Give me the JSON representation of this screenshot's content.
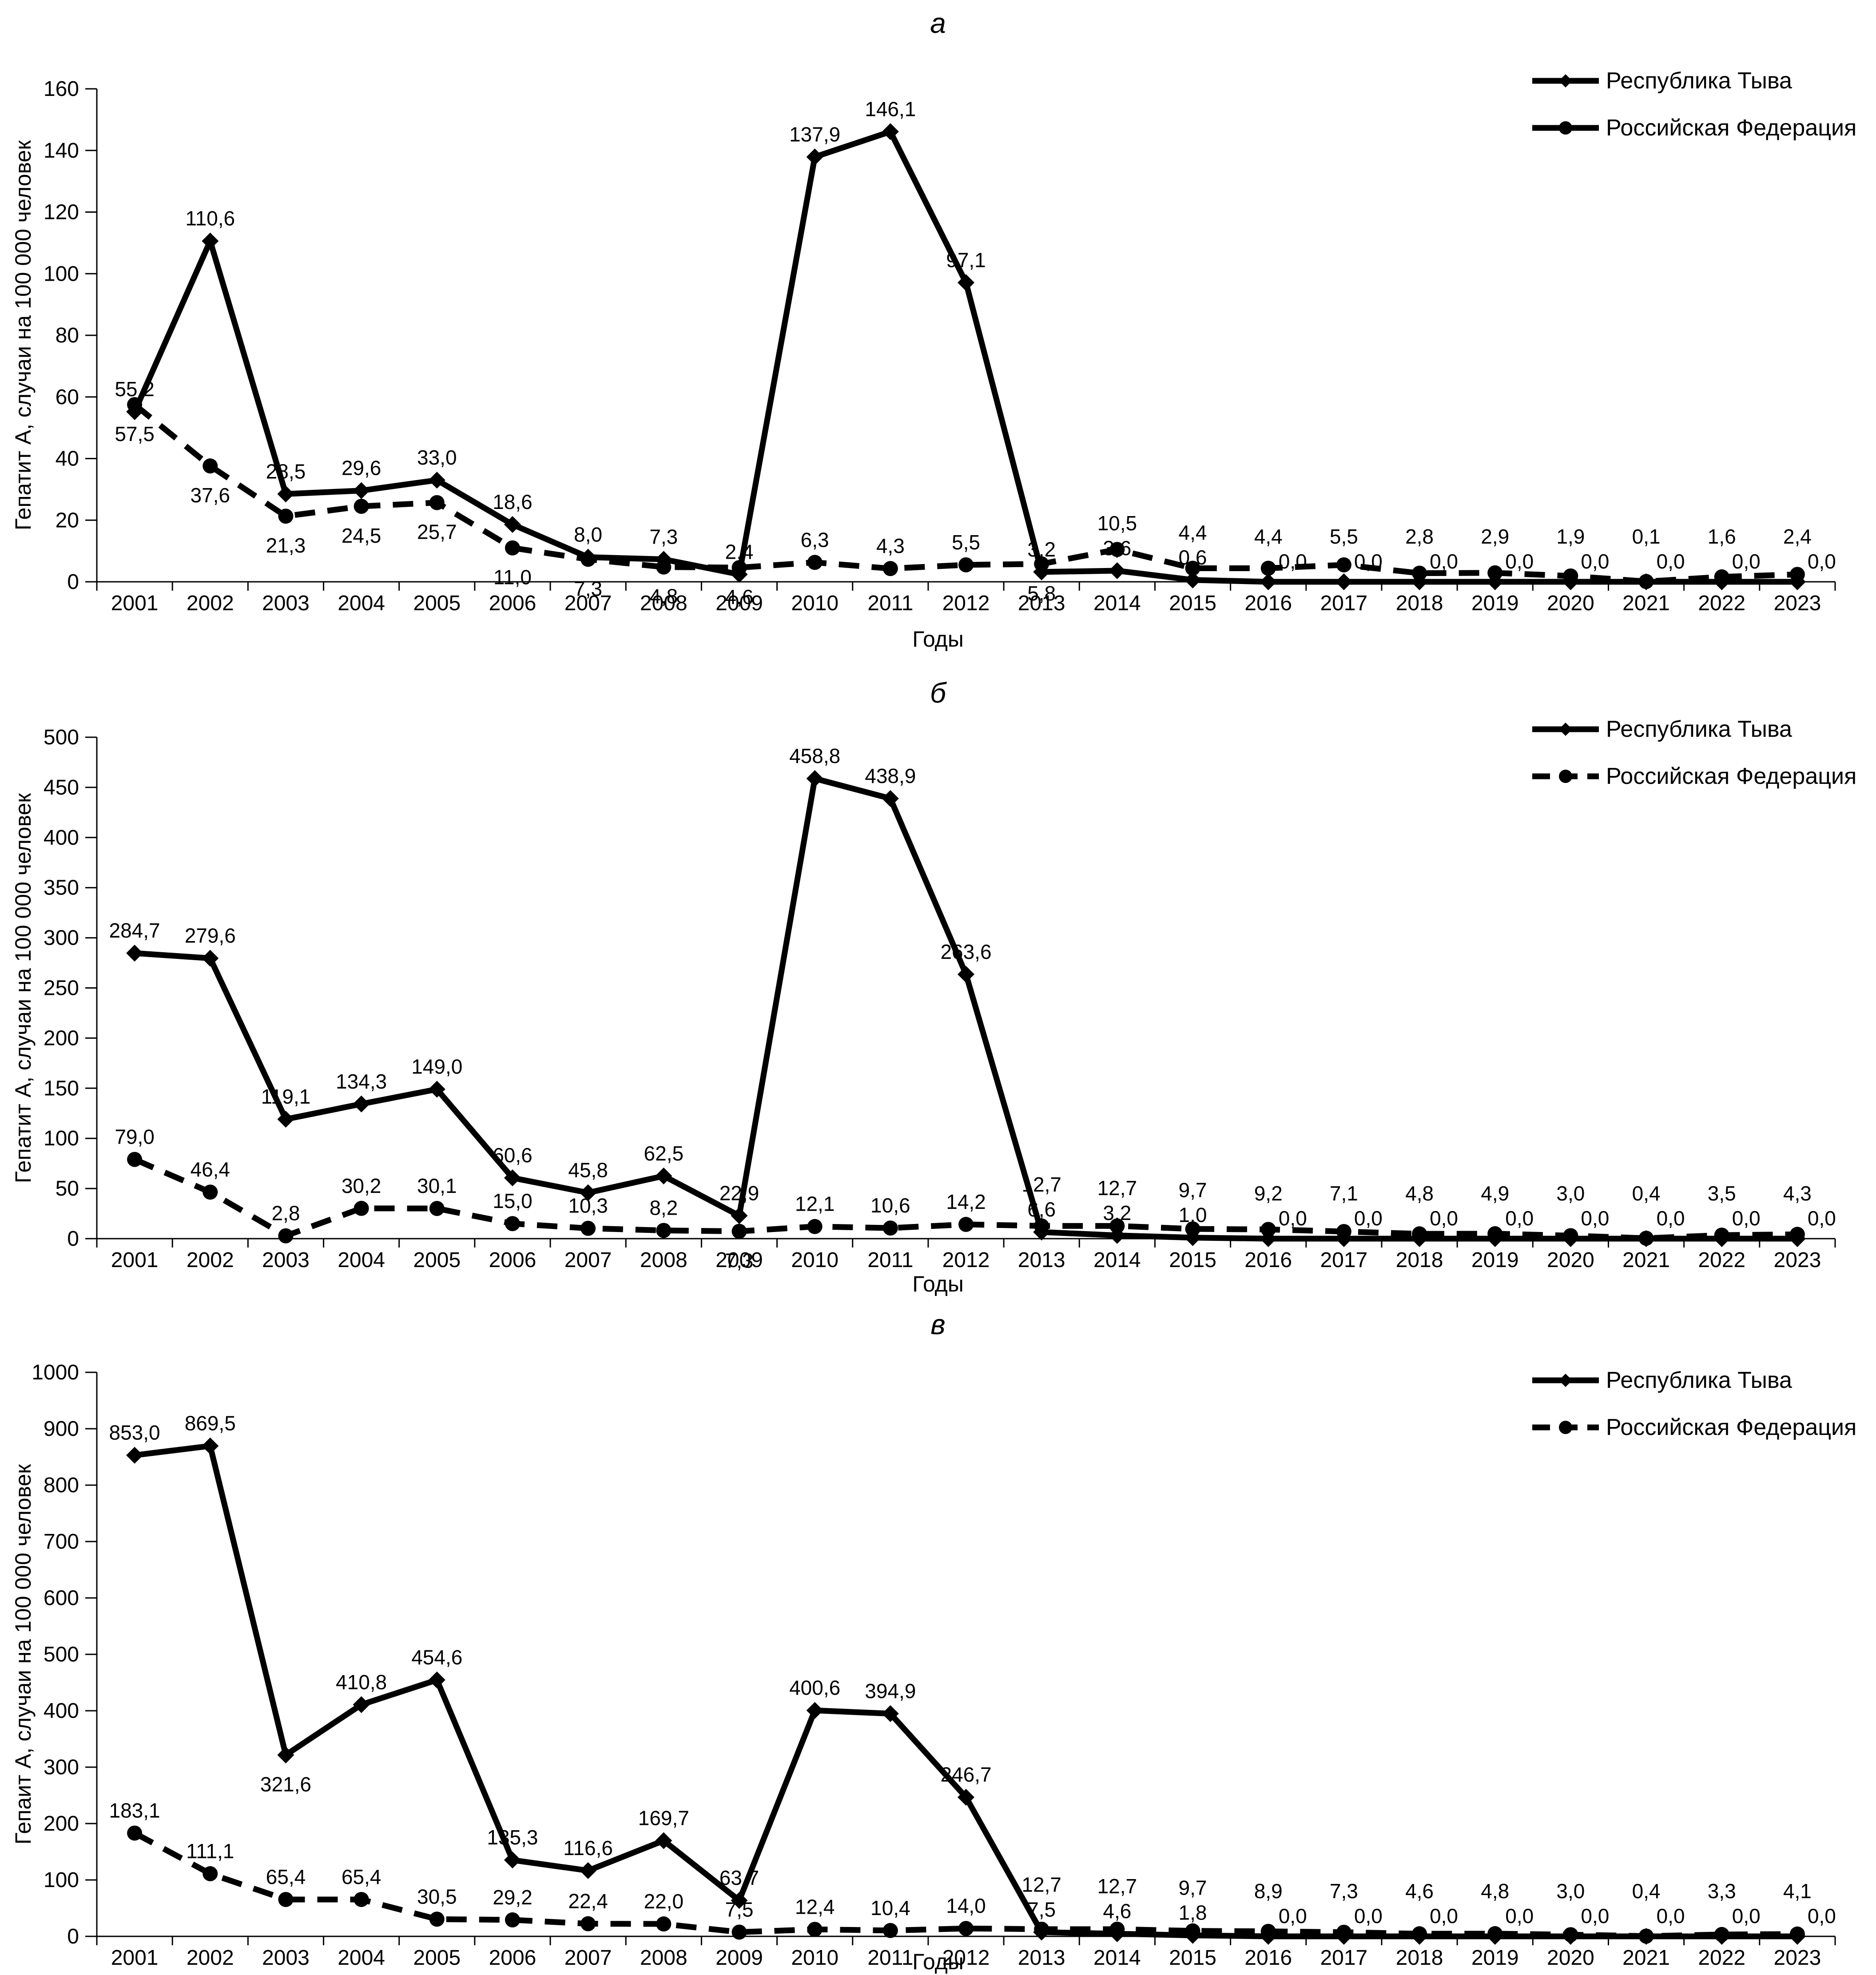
{
  "figure": {
    "xlabel": "Годы",
    "legend_tyva": "Республика Тыва",
    "legend_rf": "Российская Федерация"
  },
  "chart_data": [
    {
      "id": "a",
      "type": "line",
      "title": "а",
      "ylabel": "Гепатит А, случаи на 100 000 человек",
      "xlabel": "Годы",
      "ylim": [
        0,
        160
      ],
      "ystep": 20,
      "grid": false,
      "legend_position": "top-right",
      "categories": [
        2001,
        2002,
        2003,
        2004,
        2005,
        2006,
        2007,
        2008,
        2009,
        2010,
        2011,
        2012,
        2013,
        2014,
        2015,
        2016,
        2017,
        2018,
        2019,
        2020,
        2021,
        2022,
        2023
      ],
      "series": [
        {
          "name": "Республика Тыва",
          "marker": "diamond",
          "line": "solid",
          "legend_line": "solid",
          "values": [
            55.2,
            110.6,
            28.5,
            29.6,
            33.0,
            18.6,
            8.0,
            7.3,
            2.4,
            137.9,
            146.1,
            97.1,
            3.2,
            3.6,
            0.6,
            0.0,
            0.0,
            0.0,
            0.0,
            0.0,
            0.0,
            0.0,
            0.0
          ],
          "label_below_idx": []
        },
        {
          "name": "Российская Федерация",
          "marker": "circle",
          "line": "dashed",
          "legend_line": "solid",
          "values": [
            57.5,
            37.6,
            21.3,
            24.5,
            25.7,
            11.0,
            7.3,
            4.8,
            4.6,
            6.3,
            4.3,
            5.5,
            5.8,
            10.5,
            4.4,
            4.4,
            5.5,
            2.8,
            2.9,
            1.9,
            0.1,
            1.6,
            2.4
          ],
          "label_below_idx": [
            0,
            1,
            2,
            3,
            4,
            5,
            6,
            7,
            8,
            12
          ]
        }
      ]
    },
    {
      "id": "b",
      "type": "line",
      "title": "б",
      "ylabel": "Гепатит А, случаи на 100 000 человек",
      "xlabel": "Годы",
      "ylim": [
        0,
        500
      ],
      "ystep": 50,
      "grid": false,
      "legend_position": "top-right",
      "categories": [
        2001,
        2002,
        2003,
        2004,
        2005,
        2006,
        2007,
        2008,
        2009,
        2010,
        2011,
        2012,
        2013,
        2014,
        2015,
        2016,
        2017,
        2018,
        2019,
        2020,
        2021,
        2022,
        2023
      ],
      "series": [
        {
          "name": "Республика Тыва",
          "marker": "diamond",
          "line": "solid",
          "legend_line": "solid",
          "values": [
            284.7,
            279.6,
            119.1,
            134.3,
            149.0,
            60.6,
            45.8,
            62.5,
            22.9,
            458.8,
            438.9,
            263.6,
            6.6,
            3.2,
            1.0,
            0.0,
            0.0,
            0.0,
            0.0,
            0.0,
            0.0,
            0.0,
            0.0
          ],
          "label_below_idx": []
        },
        {
          "name": "Российская Федерация",
          "marker": "circle",
          "line": "dashed",
          "legend_line": "dashed",
          "values": [
            79.0,
            46.4,
            2.8,
            30.2,
            30.1,
            15.0,
            10.3,
            8.2,
            7.3,
            12.1,
            10.6,
            14.2,
            12.7,
            12.7,
            9.7,
            9.2,
            7.1,
            4.8,
            4.9,
            3.0,
            0.4,
            3.5,
            4.3
          ],
          "label_below_idx": [
            8
          ]
        }
      ]
    },
    {
      "id": "v",
      "type": "line",
      "title": "в",
      "ylabel": "Гепаит А, случаи на 100 000 человек",
      "xlabel": "Годы",
      "ylim": [
        0,
        1000
      ],
      "ystep": 100,
      "grid": false,
      "legend_position": "top-right",
      "categories": [
        2001,
        2002,
        2003,
        2004,
        2005,
        2006,
        2007,
        2008,
        2009,
        2010,
        2011,
        2012,
        2013,
        2014,
        2015,
        2016,
        2017,
        2018,
        2019,
        2020,
        2021,
        2022,
        2023
      ],
      "series": [
        {
          "name": "Республика Тыва",
          "marker": "diamond",
          "line": "solid",
          "legend_line": "solid",
          "values": [
            853.0,
            869.5,
            321.6,
            410.8,
            454.6,
            135.3,
            116.6,
            169.7,
            63.7,
            400.6,
            394.9,
            246.7,
            7.5,
            4.6,
            1.8,
            0.0,
            0.0,
            0.0,
            0.0,
            0.0,
            0.0,
            0.0,
            0.0
          ],
          "label_below_idx": [
            2
          ]
        },
        {
          "name": "Российская Федерация",
          "marker": "circle",
          "line": "dashed",
          "legend_line": "dashed",
          "values": [
            183.1,
            111.1,
            65.4,
            65.4,
            30.5,
            29.2,
            22.4,
            22.0,
            7.5,
            12.4,
            10.4,
            14.0,
            12.7,
            12.7,
            9.7,
            8.9,
            7.3,
            4.6,
            4.8,
            3.0,
            0.4,
            3.3,
            4.1
          ],
          "label_below_idx": []
        }
      ]
    }
  ]
}
